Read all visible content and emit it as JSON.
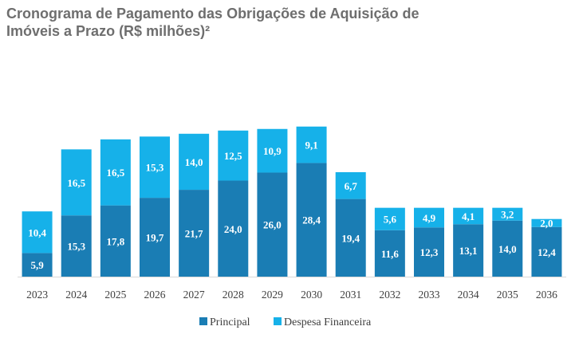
{
  "title_lines": [
    "Cronograma de Pagamento das Obrigações de Aquisição de",
    "Imóveis a Prazo (R$ milhões)²"
  ],
  "colors": {
    "principal": "#1a7db4",
    "despesa": "#16b1e9",
    "title": "#6e6e6e",
    "axis": "#d9d9d9"
  },
  "chart_data": {
    "type": "bar",
    "stacked": true,
    "title": "Cronograma de Pagamento das Obrigações de Aquisição de Imóveis a Prazo (R$ milhões)²",
    "categories": [
      "2023",
      "2024",
      "2025",
      "2026",
      "2027",
      "2028",
      "2029",
      "2030",
      "2031",
      "2032",
      "2033",
      "2034",
      "2035",
      "2036"
    ],
    "series": [
      {
        "name": "Principal",
        "values": [
          5.9,
          15.3,
          17.8,
          19.7,
          21.7,
          24.0,
          26.0,
          28.4,
          19.4,
          11.6,
          12.3,
          13.1,
          14.0,
          12.4
        ],
        "labels": [
          "5,9",
          "15,3",
          "17,8",
          "19,7",
          "21,7",
          "24,0",
          "26,0",
          "28,4",
          "19,4",
          "11,6",
          "12,3",
          "13,1",
          "14,0",
          "12,4"
        ]
      },
      {
        "name": "Despesa Financeira",
        "values": [
          10.4,
          16.5,
          16.5,
          15.3,
          14.0,
          12.5,
          10.9,
          9.1,
          6.7,
          5.6,
          4.9,
          4.1,
          3.2,
          2.0
        ],
        "labels": [
          "10,4",
          "16,5",
          "16,5",
          "15,3",
          "14,0",
          "12,5",
          "10,9",
          "9,1",
          "6,7",
          "5,6",
          "4,9",
          "4,1",
          "3,2",
          "2,0"
        ]
      }
    ],
    "legend_position": "bottom",
    "grid": false
  }
}
